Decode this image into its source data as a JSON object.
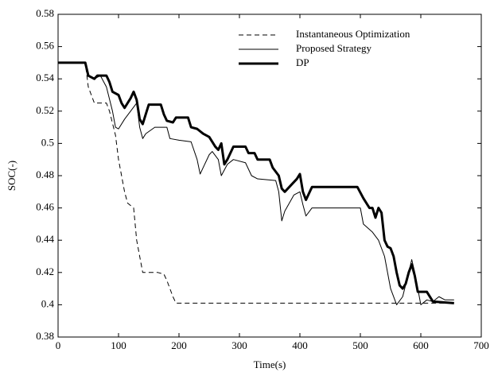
{
  "chart_data": {
    "type": "line",
    "xlabel": "Time(s)",
    "ylabel": "SOC(-)",
    "xlim": [
      0,
      700
    ],
    "xticks": [
      0,
      100,
      200,
      300,
      400,
      500,
      600,
      700
    ],
    "ylim": [
      0.38,
      0.58
    ],
    "yticks": [
      0.38,
      0.4,
      0.42,
      0.44,
      0.46,
      0.48,
      0.5,
      0.52,
      0.54,
      0.56,
      0.58
    ],
    "legend": "upper right",
    "series": [
      {
        "name": "Instantaneous Optimization",
        "color": "#000000",
        "line_style": "dashed",
        "line_width": 1,
        "x": [
          0,
          45,
          50,
          60,
          80,
          85,
          95,
          100,
          105,
          110,
          115,
          125,
          130,
          135,
          140,
          165,
          175,
          180,
          190,
          195,
          655
        ],
        "values": [
          0.55,
          0.55,
          0.535,
          0.525,
          0.525,
          0.52,
          0.505,
          0.49,
          0.48,
          0.47,
          0.463,
          0.46,
          0.44,
          0.43,
          0.42,
          0.42,
          0.419,
          0.415,
          0.405,
          0.401,
          0.401
        ]
      },
      {
        "name": "Proposed Strategy",
        "color": "#000000",
        "line_style": "solid",
        "line_width": 1,
        "x": [
          0,
          45,
          50,
          60,
          70,
          80,
          90,
          95,
          100,
          110,
          120,
          130,
          135,
          140,
          145,
          160,
          180,
          185,
          200,
          220,
          230,
          235,
          240,
          250,
          255,
          265,
          270,
          280,
          290,
          310,
          320,
          330,
          360,
          365,
          370,
          375,
          390,
          400,
          405,
          410,
          420,
          500,
          505,
          520,
          530,
          540,
          550,
          560,
          570,
          580,
          585,
          590,
          595,
          600,
          610,
          620,
          630,
          640,
          655
        ],
        "values": [
          0.55,
          0.55,
          0.542,
          0.54,
          0.542,
          0.535,
          0.52,
          0.51,
          0.509,
          0.515,
          0.52,
          0.525,
          0.51,
          0.503,
          0.506,
          0.51,
          0.51,
          0.503,
          0.502,
          0.501,
          0.49,
          0.481,
          0.485,
          0.493,
          0.495,
          0.49,
          0.48,
          0.487,
          0.49,
          0.488,
          0.48,
          0.478,
          0.477,
          0.47,
          0.452,
          0.458,
          0.468,
          0.47,
          0.462,
          0.455,
          0.46,
          0.46,
          0.45,
          0.445,
          0.44,
          0.43,
          0.41,
          0.4,
          0.405,
          0.42,
          0.428,
          0.42,
          0.41,
          0.4,
          0.403,
          0.402,
          0.405,
          0.403,
          0.403
        ]
      },
      {
        "name": "DP",
        "color": "#000000",
        "line_style": "solid",
        "line_width": 3,
        "x": [
          0,
          45,
          50,
          60,
          65,
          80,
          85,
          90,
          100,
          105,
          110,
          120,
          125,
          130,
          135,
          140,
          145,
          150,
          170,
          175,
          180,
          190,
          195,
          215,
          220,
          230,
          240,
          250,
          260,
          265,
          270,
          275,
          280,
          290,
          310,
          315,
          325,
          330,
          350,
          355,
          365,
          370,
          375,
          385,
          395,
          400,
          405,
          410,
          420,
          495,
          505,
          515,
          520,
          525,
          530,
          535,
          540,
          545,
          550,
          555,
          560,
          565,
          570,
          575,
          580,
          585,
          590,
          595,
          610,
          620,
          655
        ],
        "values": [
          0.55,
          0.55,
          0.542,
          0.54,
          0.542,
          0.542,
          0.538,
          0.532,
          0.53,
          0.525,
          0.522,
          0.528,
          0.532,
          0.527,
          0.515,
          0.512,
          0.518,
          0.524,
          0.524,
          0.518,
          0.514,
          0.513,
          0.516,
          0.516,
          0.51,
          0.509,
          0.506,
          0.504,
          0.498,
          0.496,
          0.5,
          0.487,
          0.49,
          0.498,
          0.498,
          0.494,
          0.494,
          0.49,
          0.49,
          0.485,
          0.48,
          0.472,
          0.47,
          0.474,
          0.478,
          0.481,
          0.47,
          0.465,
          0.473,
          0.473,
          0.466,
          0.46,
          0.46,
          0.454,
          0.46,
          0.457,
          0.44,
          0.436,
          0.435,
          0.43,
          0.42,
          0.412,
          0.41,
          0.413,
          0.42,
          0.425,
          0.418,
          0.408,
          0.408,
          0.402,
          0.401
        ]
      }
    ]
  }
}
